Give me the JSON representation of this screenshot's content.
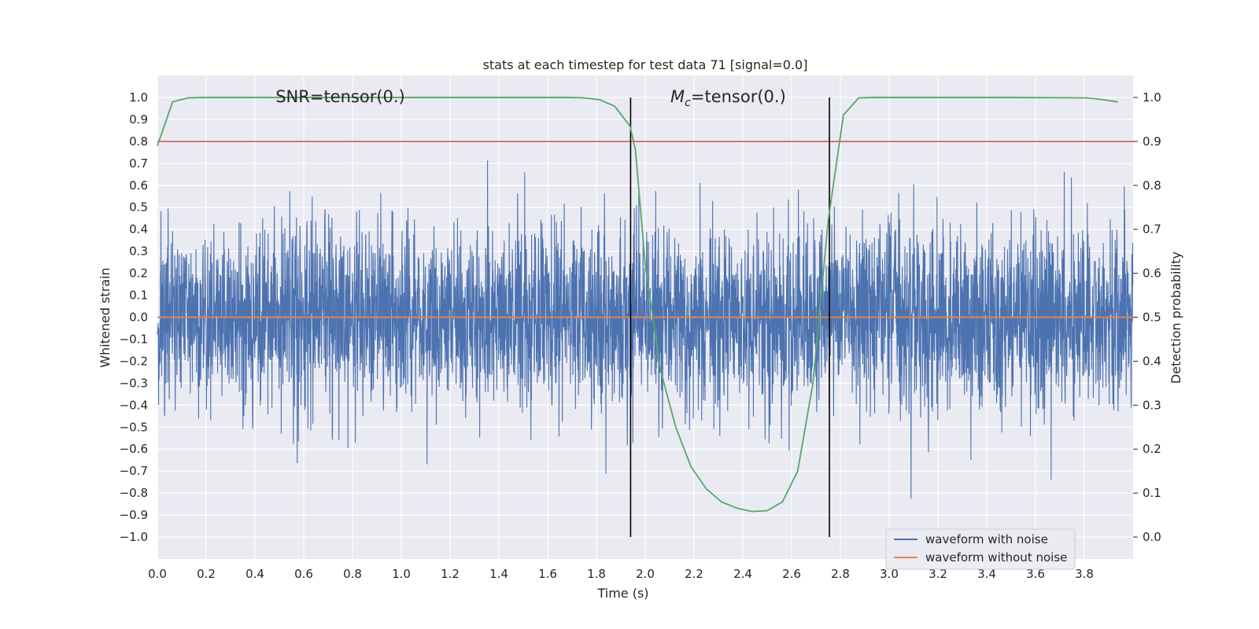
{
  "chart_data": {
    "type": "line",
    "title": "stats at each timestep for test data 71 [signal=0.0]",
    "xlabel": "Time (s)",
    "ylabel": "Whitened strain",
    "ylabel_right": "Detection probability",
    "xlim": [
      0.0,
      4.0
    ],
    "ylim": [
      -1.1,
      1.1
    ],
    "ylim_right": [
      -0.05,
      1.05
    ],
    "x_ticks": [
      "0.0",
      "0.2",
      "0.4",
      "0.6",
      "0.8",
      "1.0",
      "1.2",
      "1.4",
      "1.6",
      "1.8",
      "2.0",
      "2.2",
      "2.4",
      "2.6",
      "2.8",
      "3.0",
      "3.2",
      "3.4",
      "3.6",
      "3.8"
    ],
    "y_ticks": [
      "1.0",
      "0.9",
      "0.8",
      "0.7",
      "0.6",
      "0.5",
      "0.4",
      "0.3",
      "0.2",
      "0.1",
      "0.0",
      "−0.1",
      "−0.2",
      "−0.3",
      "−0.4",
      "−0.5",
      "−0.6",
      "−0.7",
      "−0.8",
      "−0.9",
      "−1.0"
    ],
    "y_ticks_right": [
      "1.0",
      "0.9",
      "0.8",
      "0.7",
      "0.6",
      "0.5",
      "0.4",
      "0.3",
      "0.2",
      "0.1",
      "0.0"
    ],
    "grid": true,
    "legend_placement": "lower-right",
    "annotations": [
      {
        "text": "SNR=tensor(0.)",
        "x": 0.75,
        "y": 1.0
      },
      {
        "text_main": "M",
        "text_sub": "c",
        "text_rest": "=tensor(0.)",
        "x": 2.34,
        "y": 1.0
      }
    ],
    "threshold": {
      "y_right": 0.9,
      "color": "#c44e52"
    },
    "vertical_lines": [
      {
        "x": 1.94,
        "y_from": 0.0,
        "y_to": 1.0
      },
      {
        "x": 2.755,
        "y_from": 0.0,
        "y_to": 1.0
      }
    ],
    "series": [
      {
        "name": "waveform with noise",
        "color": "#4c72b0",
        "kind": "noise",
        "amplitude_sigma": 0.21,
        "samples_per_second": 1024
      },
      {
        "name": "waveform without noise",
        "color": "#dd8452",
        "kind": "constant",
        "value": 0.0
      },
      {
        "color": "#55a868",
        "axis": "right",
        "x": [
          0.0,
          0.0625,
          0.125,
          0.1875,
          0.25,
          0.5,
          1.0,
          1.5,
          1.6875,
          1.75,
          1.8125,
          1.875,
          1.9375,
          1.96,
          2.0,
          2.0625,
          2.125,
          2.1875,
          2.25,
          2.3125,
          2.375,
          2.4375,
          2.5,
          2.5625,
          2.625,
          2.6875,
          2.75,
          2.8125,
          2.875,
          2.9375,
          3.0,
          3.5,
          3.8125,
          3.875,
          3.9375
        ],
        "y": [
          0.89,
          0.99,
          0.999,
          1.0,
          1.0,
          1.0,
          1.0,
          1.0,
          1.0,
          0.999,
          0.995,
          0.98,
          0.935,
          0.88,
          0.62,
          0.38,
          0.25,
          0.16,
          0.11,
          0.08,
          0.066,
          0.058,
          0.06,
          0.08,
          0.15,
          0.35,
          0.72,
          0.96,
          0.999,
          1.0,
          1.0,
          1.0,
          0.999,
          0.995,
          0.99
        ]
      }
    ]
  }
}
